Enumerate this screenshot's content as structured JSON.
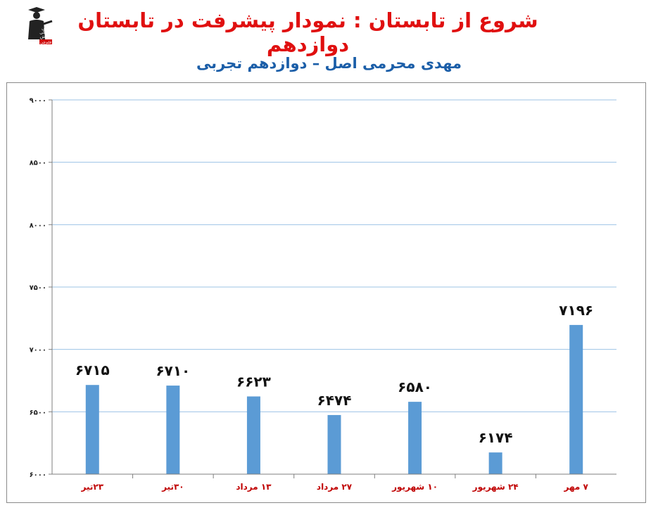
{
  "logo": {
    "icon": "graduate-figure-logo",
    "lines": [
      "کانون",
      "فرهنگی",
      "آموزش",
      "قلم‌چی"
    ]
  },
  "header": {
    "title": "شروع از تابستان : نمودار پیشرفت در تابستان دوازدهم",
    "subtitle": "مهدی محرمی اصل – دوازدهم تجربی"
  },
  "chart_data": {
    "type": "bar",
    "categories": [
      "۲۳تیر",
      "۳۰تیر",
      "۱۳ مرداد",
      "۲۷ مرداد",
      "۱۰ شهریور",
      "۲۴ شهریور",
      "۷ مهر"
    ],
    "values": [
      6715,
      6710,
      6623,
      6474,
      6580,
      6174,
      7196
    ],
    "data_labels": [
      "۶۷۱۵",
      "۶۷۱۰",
      "۶۶۲۳",
      "۶۴۷۴",
      "۶۵۸۰",
      "۶۱۷۴",
      "۷۱۹۶"
    ],
    "yticks": [
      6000,
      6500,
      7000,
      7500,
      8000,
      8500,
      9000
    ],
    "ytick_labels": [
      "۶۰۰۰",
      "۶۵۰۰",
      "۷۰۰۰",
      "۷۵۰۰",
      "۸۰۰۰",
      "۸۵۰۰",
      "۹۰۰۰"
    ],
    "ylim": [
      6000,
      9000
    ],
    "grid": true,
    "bar_color": "#5b9bd5",
    "gridline_color": "#9dc3e6",
    "category_label_color": "#c00000"
  }
}
